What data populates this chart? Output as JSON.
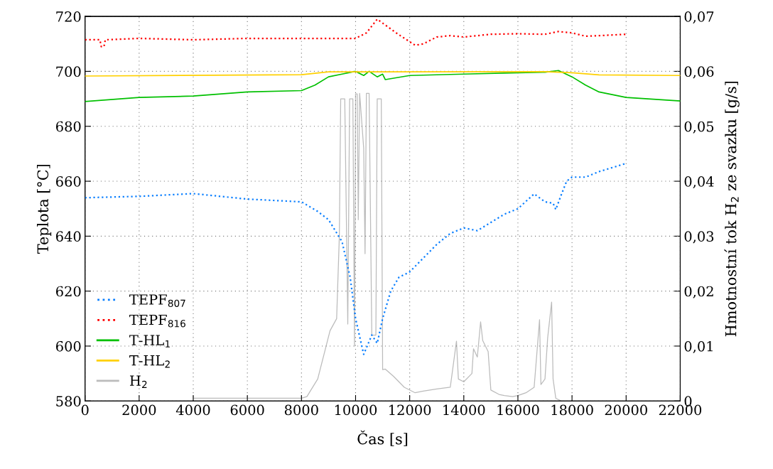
{
  "chart_data": {
    "type": "line",
    "xlabel": "Čas [s]",
    "ylabel": "Teplota [°C]",
    "y2label": "Hmotnostní tok H$_{2}$ ze svazku [g/s]",
    "xlim": [
      0,
      22000
    ],
    "xticks": [
      0,
      2000,
      4000,
      6000,
      8000,
      10000,
      12000,
      14000,
      16000,
      18000,
      20000,
      22000
    ],
    "ylim": [
      580,
      720
    ],
    "yticks": [
      580,
      600,
      620,
      640,
      660,
      680,
      700,
      720
    ],
    "y2lim": [
      0,
      0.07
    ],
    "y2ticks": [
      0,
      {
        "value": 0.01,
        "label": "0,01"
      },
      {
        "value": 0.02,
        "label": "0,02"
      },
      {
        "value": 0.03,
        "label": "0,03"
      },
      {
        "value": 0.04,
        "label": "0,04"
      },
      {
        "value": 0.05,
        "label": "0,05"
      },
      {
        "value": 0.06,
        "label": "0,06"
      },
      {
        "value": 0.07,
        "label": "0,07"
      }
    ],
    "grid": true,
    "legend": "bottom left",
    "series": [
      {
        "name": "TEPF$_{807}$",
        "color": "#0a7fff",
        "line_style": "dotted",
        "x": [
          0,
          2000,
          4000,
          6000,
          8000,
          8600,
          9000,
          9500,
          9800,
          10000,
          10300,
          10600,
          10800,
          11000,
          11300,
          11600,
          12000,
          12500,
          13000,
          13500,
          14000,
          14500,
          15000,
          15500,
          16000,
          16600,
          17000,
          17300,
          17400,
          17600,
          17800,
          18000,
          18500,
          19000,
          19500,
          20000
        ],
        "values": [
          654,
          654.5,
          655.5,
          653.5,
          652.5,
          649,
          646,
          638,
          625,
          610,
          597,
          604,
          601,
          610,
          620,
          625,
          627,
          632,
          637,
          641,
          643,
          642,
          645,
          648,
          650,
          655.4,
          652.5,
          652,
          649.7,
          655,
          660,
          661.5,
          661.5,
          663.5,
          665,
          666.5
        ]
      },
      {
        "name": "TEPF$_{816}$",
        "color": "#ff0000",
        "line_style": "dotted",
        "x": [
          0,
          550,
          600,
          700,
          750,
          2000,
          4000,
          6000,
          8000,
          10000,
          10400,
          10800,
          11500,
          12200,
          12500,
          13000,
          13500,
          14000,
          15000,
          16000,
          17000,
          17500,
          18000,
          18500,
          19000,
          20000
        ],
        "values": [
          711.5,
          711.5,
          709,
          709,
          711.5,
          712,
          711.5,
          712,
          712,
          712,
          714,
          719,
          714,
          709.5,
          710,
          712.5,
          713,
          712.5,
          713.5,
          713.7,
          713.5,
          714.5,
          714,
          712.8,
          713,
          713.5
        ]
      },
      {
        "name": "T-HL$_{1}$",
        "color": "#00c000",
        "line_style": "solid",
        "x": [
          0,
          2000,
          4000,
          6000,
          8000,
          8500,
          9000,
          9500,
          10000,
          10300,
          10500,
          10800,
          11000,
          11100,
          12000,
          14000,
          16000,
          17000,
          17500,
          18000,
          18500,
          19000,
          20000,
          22000
        ],
        "values": [
          689,
          690.5,
          691,
          692.5,
          693,
          695,
          698,
          699,
          700,
          698.5,
          700,
          698,
          699,
          697,
          698.5,
          699,
          699.5,
          699.7,
          700.3,
          698,
          695,
          692.5,
          690.5,
          689.2
        ]
      },
      {
        "name": "T-HL$_{2}$",
        "color": "#ffd000",
        "line_style": "solid",
        "x": [
          0,
          8000,
          9000,
          17000,
          18000,
          19000,
          22000
        ],
        "values": [
          698.3,
          698.8,
          699.8,
          699.9,
          699.5,
          698.7,
          698.5
        ]
      },
      {
        "name": "H$_{2}$",
        "color": "#bbbbbb",
        "line_style": "solid",
        "axis": "y2",
        "x": [
          4000,
          8000,
          8200,
          8600,
          9056,
          9300,
          9400,
          9450,
          9600,
          9712,
          9780,
          9900,
          9960,
          10000,
          10060,
          10100,
          10150,
          10300,
          10350,
          10400,
          10500,
          10600,
          10750,
          10800,
          10950,
          11000,
          11100,
          11400,
          11800,
          12200,
          12500,
          13000,
          13500,
          13729,
          13800,
          14000,
          14300,
          14359,
          14500,
          14621,
          14700,
          14900,
          15000,
          15300,
          15500,
          15800,
          16000,
          16300,
          16600,
          16800,
          16850,
          17000,
          17100,
          17246,
          17300,
          17400,
          17600
        ],
        "values": [
          0.0005,
          0.0005,
          0.0008,
          0.004,
          0.0128,
          0.015,
          0.03,
          0.055,
          0.055,
          0.014,
          0.055,
          0.055,
          0.01,
          0.0559,
          0.0559,
          0.033,
          0.056,
          0.046,
          0.0268,
          0.056,
          0.056,
          0.012,
          0.012,
          0.055,
          0.055,
          0.0057,
          0.0058,
          0.0045,
          0.0025,
          0.0015,
          0.0018,
          0.0022,
          0.0025,
          0.0109,
          0.004,
          0.0035,
          0.005,
          0.0095,
          0.008,
          0.0144,
          0.011,
          0.009,
          0.002,
          0.0012,
          0.001,
          0.0008,
          0.001,
          0.0015,
          0.0025,
          0.0148,
          0.003,
          0.004,
          0.0115,
          0.018,
          0.004,
          0.0005,
          0.0
        ]
      }
    ]
  }
}
